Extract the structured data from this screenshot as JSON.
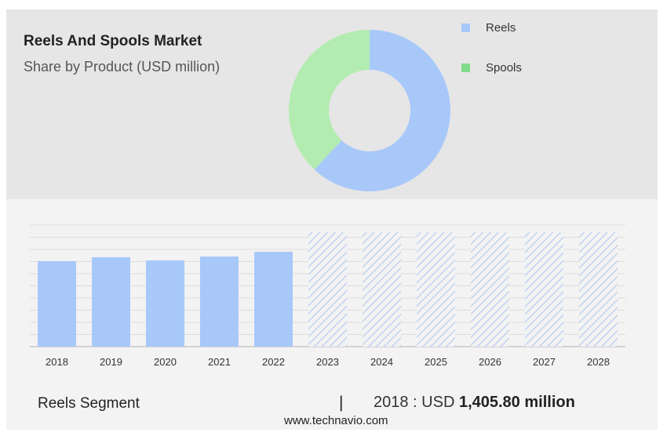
{
  "chart_data": [
    {
      "type": "pie",
      "title": "Reels And Spools Market",
      "subtitle": "Share by Product (USD million)",
      "labels": [
        "Reels",
        "Spools"
      ],
      "values": [
        62,
        38
      ],
      "colors": [
        "#a8c8fa",
        "#b2ecb0"
      ],
      "legend_colors": [
        "#a8c8fa",
        "#7fdc8a"
      ],
      "legend": "right",
      "donut": true
    },
    {
      "type": "bar",
      "categories": [
        "2018",
        "2019",
        "2020",
        "2021",
        "2022",
        "2023",
        "2024",
        "2025",
        "2026",
        "2027",
        "2028"
      ],
      "values": [
        1405.8,
        1470,
        1418,
        1482,
        1560,
        null,
        null,
        null,
        null,
        null,
        null
      ],
      "forecast": [
        false,
        false,
        false,
        false,
        false,
        true,
        true,
        true,
        true,
        true,
        true
      ],
      "ylim": [
        0,
        2000
      ],
      "grid": true,
      "color": "#a8c8fa",
      "forecast_color": "#b8cdf0"
    }
  ],
  "footer": {
    "segment": "Reels Segment",
    "separator": "|",
    "year_prefix": "2018 : USD ",
    "value": "1,405.80 million",
    "site": "www.technavio.com"
  }
}
